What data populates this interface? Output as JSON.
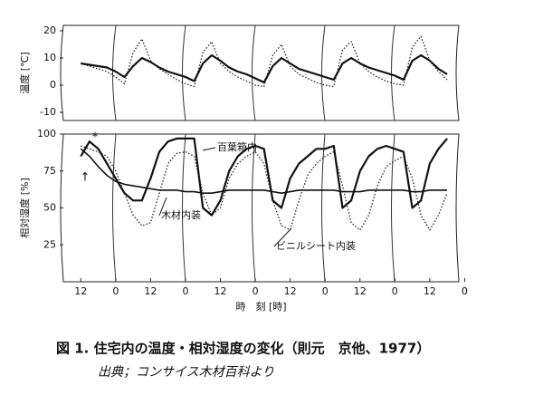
{
  "chart_data": [
    {
      "type": "line",
      "ylabel": "温度 [℃]",
      "xlim": [
        6,
        142
      ],
      "ylim": [
        -13,
        22
      ],
      "yticks": [
        20,
        10,
        0,
        -10
      ],
      "x": [
        12,
        15,
        18,
        21,
        24,
        27,
        30,
        33,
        36,
        39,
        42,
        45,
        48,
        51,
        54,
        57,
        60,
        63,
        66,
        69,
        72,
        75,
        78,
        81,
        84,
        87,
        90,
        93,
        96,
        99,
        102,
        105,
        108,
        111,
        114,
        117,
        120,
        123,
        126,
        129,
        132,
        135,
        138
      ],
      "series": [
        {
          "color": "#111",
          "style": "solid",
          "width": 2.2,
          "values": [
            8,
            7.5,
            7,
            6.5,
            5,
            3,
            7,
            10,
            8.5,
            6.5,
            5,
            4,
            3,
            1.5,
            8,
            11,
            9,
            6.5,
            5,
            4,
            2.5,
            1,
            7,
            10,
            8,
            6,
            5,
            4,
            3,
            2,
            8,
            10,
            8,
            6.5,
            5.5,
            4.5,
            3.5,
            2,
            9,
            11,
            9,
            6,
            4
          ]
        },
        {
          "color": "#111",
          "style": "dotted",
          "width": 1.2,
          "values": [
            8,
            7,
            6,
            5,
            3,
            0.5,
            12,
            17,
            9,
            6,
            4,
            2,
            0.5,
            -0.5,
            12,
            16,
            8,
            5,
            3,
            1.5,
            0,
            -0.5,
            11,
            15,
            7,
            4,
            2.5,
            1,
            0,
            -0.5,
            13,
            16,
            8,
            5,
            3,
            1.5,
            0.5,
            0,
            14,
            18,
            9,
            5,
            2
          ]
        }
      ]
    },
    {
      "type": "line",
      "ylabel": "相対湿度 [%]",
      "xlabel": "時　刻 [時]",
      "xlim": [
        6,
        142
      ],
      "ylim": [
        0,
        100
      ],
      "yticks": [
        100,
        75,
        50,
        25
      ],
      "xticks": [
        12,
        {
          "value": 24,
          "label": "0"
        },
        {
          "value": 36,
          "label": "12"
        },
        {
          "value": 48,
          "label": "0"
        },
        {
          "value": 60,
          "label": "12"
        },
        {
          "value": 72,
          "label": "0"
        },
        {
          "value": 84,
          "label": "12"
        },
        {
          "value": 96,
          "label": "0"
        },
        {
          "value": 108,
          "label": "12"
        },
        {
          "value": 120,
          "label": "0"
        },
        {
          "value": 132,
          "label": "12"
        },
        {
          "value": 144,
          "label": "0"
        }
      ],
      "annotations": [
        "*",
        "↑"
      ],
      "x": [
        12,
        15,
        18,
        21,
        24,
        27,
        30,
        33,
        36,
        39,
        42,
        45,
        48,
        51,
        54,
        57,
        60,
        63,
        66,
        69,
        72,
        75,
        78,
        81,
        84,
        87,
        90,
        93,
        96,
        99,
        102,
        105,
        108,
        111,
        114,
        117,
        120,
        123,
        126,
        129,
        132,
        135,
        138
      ],
      "series": [
        {
          "name": "百葉箱内",
          "color": "#111",
          "style": "solid",
          "width": 2.2,
          "values": [
            85,
            95,
            90,
            80,
            70,
            60,
            55,
            55,
            70,
            88,
            95,
            97,
            97,
            97,
            50,
            45,
            55,
            75,
            85,
            90,
            92,
            90,
            55,
            50,
            70,
            80,
            85,
            90,
            90,
            92,
            50,
            55,
            75,
            85,
            90,
            92,
            90,
            88,
            50,
            55,
            80,
            90,
            97
          ]
        },
        {
          "name": "木材内装",
          "color": "#111",
          "style": "solid",
          "width": 1.6,
          "values": [
            90,
            85,
            78,
            72,
            68,
            66,
            65,
            64,
            63,
            62,
            62,
            62,
            61,
            61,
            60,
            60,
            61,
            62,
            62,
            62,
            62,
            62,
            61,
            60,
            61,
            62,
            62,
            62,
            62,
            62,
            61,
            61,
            61,
            62,
            62,
            62,
            62,
            62,
            61,
            61,
            62,
            62,
            62
          ]
        },
        {
          "name": "ビニルシート内装",
          "color": "#111",
          "style": "dotted",
          "width": 1.2,
          "values": [
            92,
            90,
            88,
            85,
            75,
            60,
            45,
            38,
            40,
            60,
            80,
            87,
            88,
            85,
            60,
            45,
            50,
            70,
            80,
            85,
            88,
            80,
            55,
            38,
            35,
            55,
            72,
            80,
            85,
            88,
            65,
            40,
            35,
            45,
            65,
            78,
            82,
            85,
            70,
            45,
            35,
            45,
            60
          ]
        }
      ]
    }
  ],
  "figure_caption": "図 1. 住宅内の温度・相対湿度の変化（則元　京他、1977）",
  "source_note": "出典；コンサイス木材百科より"
}
